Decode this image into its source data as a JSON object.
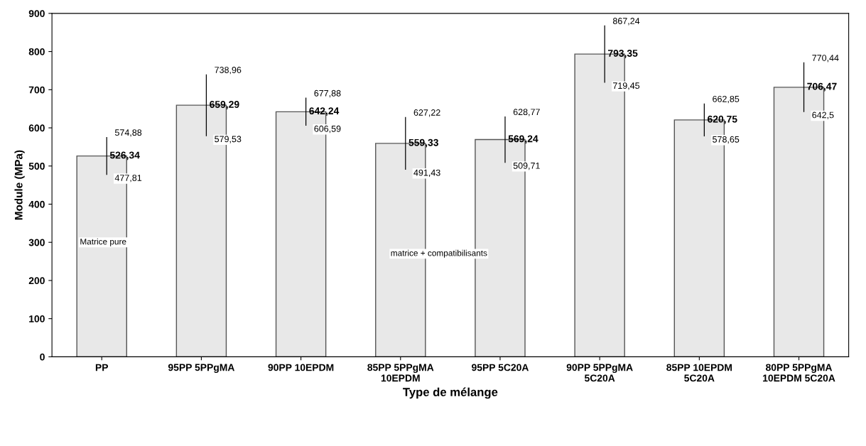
{
  "chart_data": {
    "type": "bar",
    "xlabel": "Type de mélange",
    "ylabel": "Module (MPa)",
    "categories": [
      "PP",
      "95PP 5PPgMA",
      "90PP 10EPDM",
      "85PP 5PPgMA\n10EPDM",
      "95PP 5C20A",
      "90PP 5PPgMA\n5C20A",
      "85PP 10EPDM\n5C20A",
      "80PP 5PPgMA\n10EPDM 5C20A"
    ],
    "values": [
      526.34,
      659.29,
      642.24,
      559.33,
      569.24,
      793.35,
      620.75,
      706.47
    ],
    "errors": [
      [
        477.81,
        574.88
      ],
      [
        579.53,
        738.96
      ],
      [
        606.59,
        677.88
      ],
      [
        491.43,
        627.22
      ],
      [
        509.71,
        628.77
      ],
      [
        719.45,
        867.24
      ],
      [
        578.65,
        662.85
      ],
      [
        642.5,
        770.44
      ]
    ],
    "value_labels": [
      "526,34",
      "659,29",
      "642,24",
      "559,33",
      "569,24",
      "793,35",
      "620,75",
      "706,47"
    ],
    "color": "#e8e8e8",
    "ylim": [
      0,
      900
    ],
    "yticks": [
      0,
      100,
      200,
      300,
      400,
      500,
      600,
      700,
      800,
      900
    ],
    "grid": false,
    "annotations": [
      "574,88",
      "477,81",
      "738,96",
      "579,53",
      "677,88",
      "606,59",
      "627,22",
      "491,43",
      "628,77",
      "509,71",
      "867,24",
      "719,45",
      "662,85",
      "578,65",
      "770,44",
      "642,5",
      "Matrice pure",
      "matrice + compatibilisants"
    ]
  }
}
